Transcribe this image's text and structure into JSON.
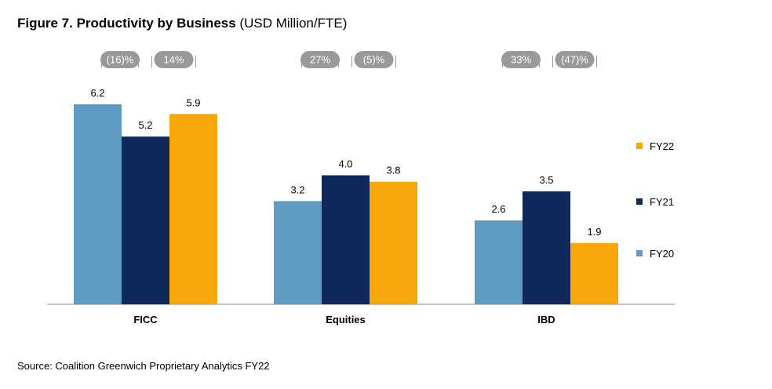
{
  "title": "Figure 7. Productivity by Business",
  "title_unit": "(USD Million/FTE)",
  "source": "Source: Coalition Greenwich Proprietary Analytics FY22",
  "colors": {
    "FY20": "#5f9bc3",
    "FY21": "#10295a",
    "FY22": "#f7a70a",
    "pill": "#999999",
    "axis": "#888888"
  },
  "chart_data": {
    "type": "bar",
    "categories": [
      "FICC",
      "Equities",
      "IBD"
    ],
    "series": [
      {
        "name": "FY20",
        "values": [
          6.2,
          3.2,
          2.6
        ]
      },
      {
        "name": "FY21",
        "values": [
          5.2,
          4.0,
          3.5
        ]
      },
      {
        "name": "FY22",
        "values": [
          5.9,
          3.8,
          1.9
        ]
      }
    ],
    "value_labels": [
      [
        "6.2",
        "3.2",
        "2.6"
      ],
      [
        "5.2",
        "4.0",
        "3.5"
      ],
      [
        "5.9",
        "3.8",
        "1.9"
      ]
    ],
    "growth_labels": [
      [
        "(16)%",
        "14%"
      ],
      [
        "27%",
        "(5)%"
      ],
      [
        "33%",
        "(47)%"
      ]
    ],
    "legend_order": [
      "FY22",
      "FY21",
      "FY20"
    ],
    "legend_position": "right",
    "ylim": [
      0,
      6.2
    ],
    "grid": false,
    "xlabel": "",
    "ylabel": ""
  }
}
